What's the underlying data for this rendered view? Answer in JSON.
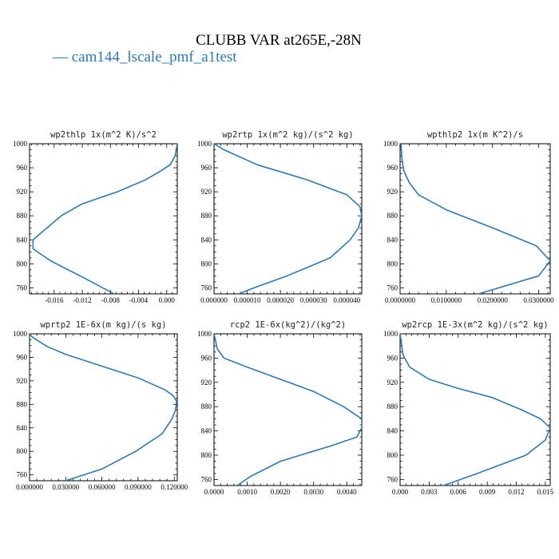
{
  "figure": {
    "title": "CLUBB VAR at265E,-28N",
    "legend": "— cam144_lscale_pmf_a1test",
    "line_color": "#2a7ab5"
  },
  "chart_data": [
    {
      "type": "line",
      "title": "wp2thlp  1x(m^2 K)/s^2",
      "xlim": [
        -0.0195,
        0.0015
      ],
      "ylim": [
        1000,
        750
      ],
      "y_ticks": [
        760,
        800,
        840,
        880,
        920,
        960,
        1000
      ],
      "x_ticks": [
        {
          "v": -0.016,
          "label": "-0.016"
        },
        {
          "v": -0.012,
          "label": "-0.012"
        },
        {
          "v": -0.008,
          "label": "-0.008"
        },
        {
          "v": -0.004,
          "label": "-0.004"
        },
        {
          "v": 0.0,
          "label": "0.000"
        }
      ],
      "series": [
        {
          "x": [
            -0.0075,
            -0.0115,
            -0.0165,
            -0.019,
            -0.019,
            -0.017,
            -0.015,
            -0.012,
            -0.007,
            -0.003,
            -0.0008,
            0.0005,
            0.0012,
            0.0015
          ],
          "y": [
            750,
            775,
            805,
            825,
            840,
            860,
            880,
            900,
            920,
            940,
            955,
            965,
            980,
            1000
          ]
        }
      ]
    },
    {
      "type": "line",
      "title": "wp2rtp  1x(m^2 kg)/(s^2 kg)",
      "xlim": [
        0,
        4.45e-05
      ],
      "ylim": [
        1000,
        750
      ],
      "y_ticks": [
        760,
        800,
        840,
        880,
        920,
        960,
        1000
      ],
      "x_ticks": [
        {
          "v": 0.0,
          "label": "0.000000"
        },
        {
          "v": 1e-05,
          "label": "0.000010"
        },
        {
          "v": 2e-05,
          "label": "0.000020"
        },
        {
          "v": 3e-05,
          "label": "0.000030"
        },
        {
          "v": 4e-05,
          "label": "0.000040"
        }
      ],
      "series": [
        {
          "x": [
            7.5e-06,
            1.2e-05,
            2.2e-05,
            3.5e-05,
            4.1e-05,
            4.35e-05,
            4.45e-05,
            4.4e-05,
            4e-05,
            2.8e-05,
            1.3e-05,
            3e-06,
            0.0
          ],
          "y": [
            750,
            760,
            780,
            810,
            840,
            860,
            880,
            895,
            915,
            940,
            965,
            990,
            1000
          ]
        }
      ]
    },
    {
      "type": "line",
      "title": "wpthlp2  1x(m K^2)/s",
      "xlim": [
        0,
        0.0325
      ],
      "ylim": [
        1000,
        750
      ],
      "y_ticks": [
        760,
        800,
        840,
        880,
        920,
        960,
        1000
      ],
      "x_ticks": [
        {
          "v": 0.0,
          "label": "0.0000000"
        },
        {
          "v": 0.01,
          "label": "0.0100000"
        },
        {
          "v": 0.02,
          "label": "0.0200000"
        },
        {
          "v": 0.03,
          "label": "0.0300000"
        }
      ],
      "series": [
        {
          "x": [
            0.017,
            0.03,
            0.0325,
            0.0295,
            0.02,
            0.01,
            0.004,
            0.002,
            0.0008,
            0.0004,
            0.0002
          ],
          "y": [
            750,
            780,
            805,
            830,
            860,
            890,
            915,
            935,
            955,
            975,
            1000
          ]
        }
      ]
    },
    {
      "type": "line",
      "title": "wprtp2  1E-6x(m kg)/(s kg)",
      "xlim": [
        0,
        0.1225
      ],
      "ylim": [
        1000,
        750
      ],
      "y_ticks": [
        760,
        800,
        840,
        880,
        920,
        960,
        1000
      ],
      "x_ticks": [
        {
          "v": 0.0,
          "label": "0.000000"
        },
        {
          "v": 0.03,
          "label": "0.030000"
        },
        {
          "v": 0.06,
          "label": "0.060000"
        },
        {
          "v": 0.09,
          "label": "0.090000"
        },
        {
          "v": 0.12,
          "label": "0.120000"
        }
      ],
      "series": [
        {
          "x": [
            0.03,
            0.06,
            0.088,
            0.11,
            0.118,
            0.121,
            0.122,
            0.119,
            0.112,
            0.09,
            0.06,
            0.03,
            0.015,
            0.007,
            0.002,
            0.0
          ],
          "y": [
            750,
            770,
            800,
            830,
            855,
            870,
            885,
            895,
            905,
            925,
            945,
            965,
            978,
            988,
            995,
            1000
          ]
        }
      ]
    },
    {
      "type": "line",
      "title": "rcp2  1E-6x(kg^2)/(kg^2)",
      "xlim": [
        0,
        0.00445
      ],
      "ylim": [
        1000,
        750
      ],
      "y_ticks": [
        760,
        800,
        840,
        880,
        920,
        960,
        1000
      ],
      "x_ticks": [
        {
          "v": 0.0,
          "label": "0.0000"
        },
        {
          "v": 0.001,
          "label": "0.0010"
        },
        {
          "v": 0.002,
          "label": "0.0020"
        },
        {
          "v": 0.003,
          "label": "0.0030"
        },
        {
          "v": 0.004,
          "label": "0.0040"
        }
      ],
      "series": [
        {
          "x": [
            0.0007,
            0.0011,
            0.002,
            0.0035,
            0.0043,
            0.00445,
            0.00445,
            0.0039,
            0.003,
            0.002,
            0.001,
            0.0003,
            0.0001,
            0.0
          ],
          "y": [
            750,
            765,
            790,
            815,
            830,
            845,
            860,
            880,
            905,
            925,
            945,
            960,
            975,
            1000
          ]
        }
      ]
    },
    {
      "type": "line",
      "title": "wp2rcp  1E-3x(m^2 kg)/(s^2 kg)",
      "xlim": [
        0,
        0.0155
      ],
      "ylim": [
        1000,
        750
      ],
      "y_ticks": [
        760,
        800,
        840,
        880,
        920,
        960,
        1000
      ],
      "x_ticks": [
        {
          "v": 0.0,
          "label": "0.000"
        },
        {
          "v": 0.003,
          "label": "0.003"
        },
        {
          "v": 0.006,
          "label": "0.006"
        },
        {
          "v": 0.009,
          "label": "0.009"
        },
        {
          "v": 0.012,
          "label": "0.012"
        },
        {
          "v": 0.015,
          "label": "0.015"
        }
      ],
      "series": [
        {
          "x": [
            0.0045,
            0.008,
            0.013,
            0.015,
            0.0155,
            0.0145,
            0.0125,
            0.0095,
            0.006,
            0.003,
            0.001,
            0.0003,
            0.0
          ],
          "y": [
            750,
            770,
            800,
            825,
            845,
            860,
            875,
            895,
            910,
            925,
            945,
            965,
            1000
          ]
        }
      ]
    }
  ]
}
